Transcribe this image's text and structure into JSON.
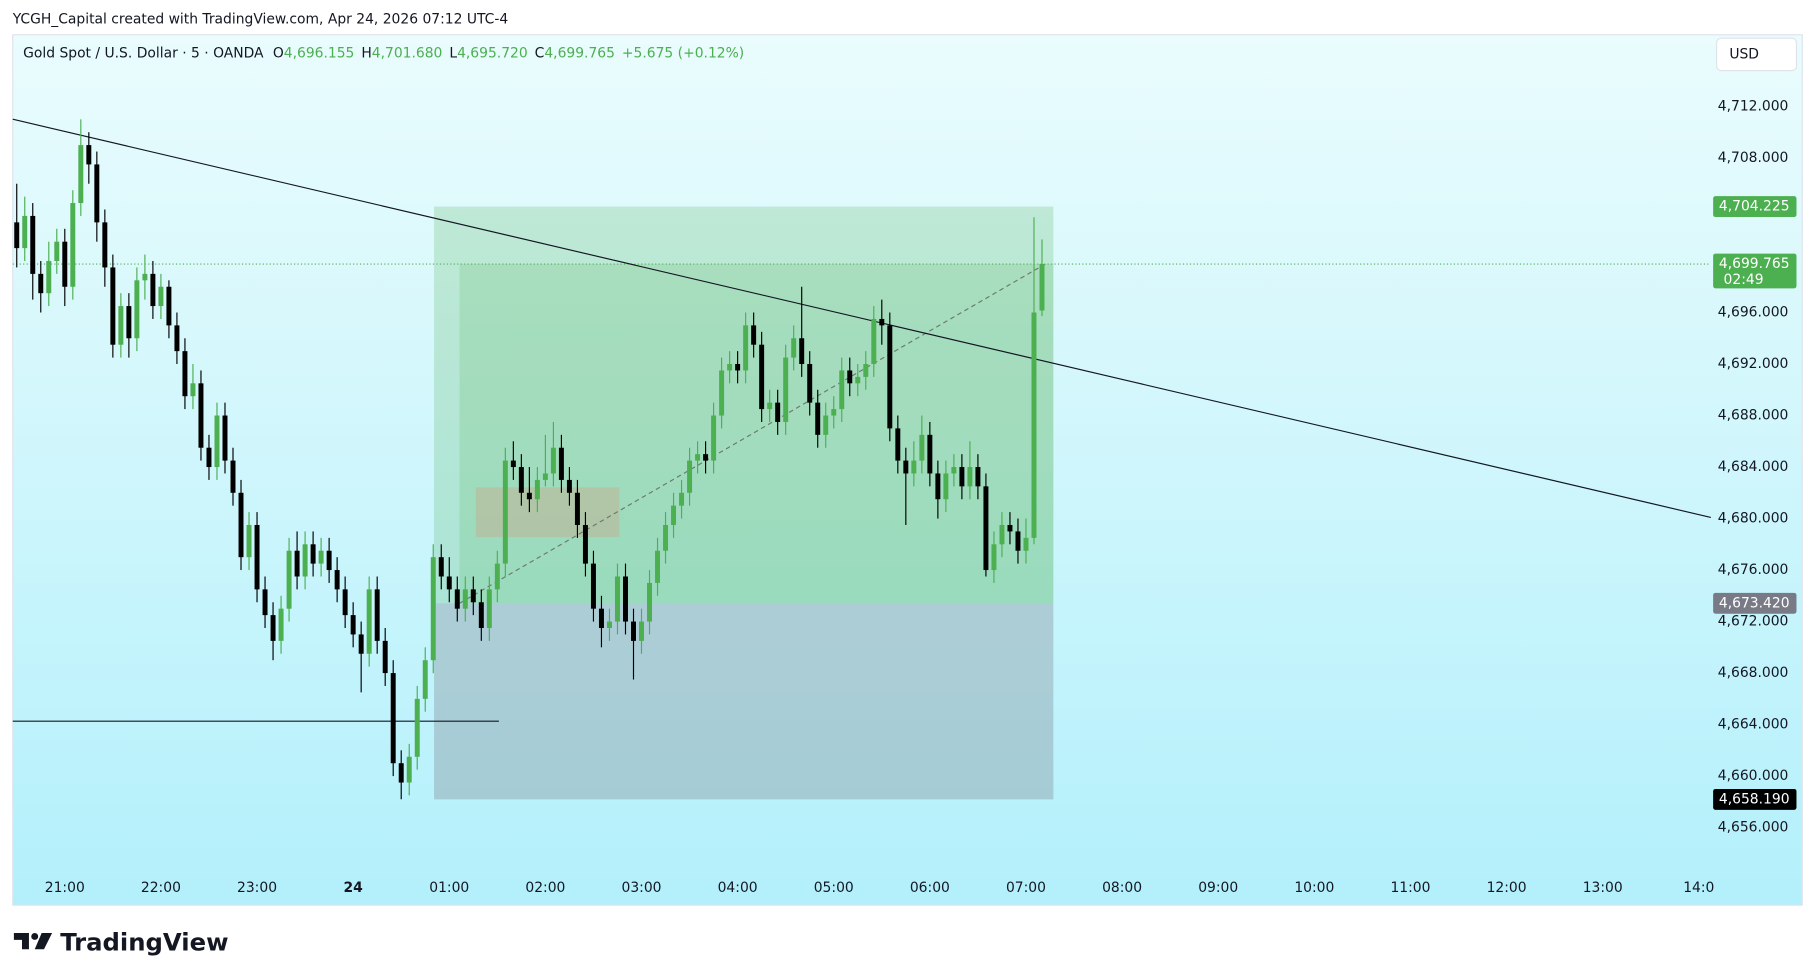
{
  "chart_data": {
    "type": "candlestick",
    "attribution": "YCGH_Capital created with TradingView.com, Apr 24, 2026 07:12 UTC-4",
    "title": "Gold Spot / U.S. Dollar · 5 · OANDA",
    "ohlc_header": [
      {
        "key": "O",
        "value": "4,696.155"
      },
      {
        "key": "H",
        "value": "4,701.680"
      },
      {
        "key": "L",
        "value": "4,695.720"
      },
      {
        "key": "C",
        "value": "4,699.765"
      }
    ],
    "change": "+5.675 (+0.12%)",
    "currency": "USD",
    "logo": "TradingView",
    "up_color": "#4caf50",
    "down_color": "#000000",
    "xlim": [
      -0.5,
      211.5
    ],
    "xticks": [
      {
        "value": 6,
        "label": "21:00"
      },
      {
        "value": 18,
        "label": "22:00"
      },
      {
        "value": 30,
        "label": "23:00"
      },
      {
        "value": 42,
        "label": "24",
        "bold": true
      },
      {
        "value": 54,
        "label": "01:00"
      },
      {
        "value": 66,
        "label": "02:00"
      },
      {
        "value": 78,
        "label": "03:00"
      },
      {
        "value": 90,
        "label": "04:00"
      },
      {
        "value": 102,
        "label": "05:00"
      },
      {
        "value": 114,
        "label": "06:00"
      },
      {
        "value": 126,
        "label": "07:00"
      },
      {
        "value": 138,
        "label": "08:00"
      },
      {
        "value": 150,
        "label": "09:00"
      },
      {
        "value": 162,
        "label": "10:00"
      },
      {
        "value": 174,
        "label": "11:00"
      },
      {
        "value": 186,
        "label": "12:00"
      },
      {
        "value": 198,
        "label": "13:00"
      },
      {
        "value": 210,
        "label": "14:0"
      }
    ],
    "ylim": [
      4652.67,
      4717.57
    ],
    "yticks": [
      {
        "value": 4656,
        "label": "4,656.000"
      },
      {
        "value": 4660,
        "label": "4,660.000"
      },
      {
        "value": 4664,
        "label": "4,664.000"
      },
      {
        "value": 4668,
        "label": "4,668.000"
      },
      {
        "value": 4672,
        "label": "4,672.000"
      },
      {
        "value": 4676,
        "label": "4,676.000"
      },
      {
        "value": 4680,
        "label": "4,680.000"
      },
      {
        "value": 4684,
        "label": "4,684.000"
      },
      {
        "value": 4688,
        "label": "4,688.000"
      },
      {
        "value": 4692,
        "label": "4,692.000"
      },
      {
        "value": 4696,
        "label": "4,696.000"
      },
      {
        "value": 4700,
        "label": "4,700.000"
      },
      {
        "value": 4704,
        "label": "4,704.000"
      },
      {
        "value": 4708,
        "label": "4,708.000"
      },
      {
        "value": 4712,
        "label": "4,712.000"
      }
    ],
    "price_labels": [
      {
        "value": 4704.225,
        "label": "4,704.225",
        "color": "#4caf50"
      },
      {
        "value": 4699.765,
        "label": "4,699.765",
        "sublabel": "02:49",
        "color": "#4caf50"
      },
      {
        "value": 4673.42,
        "label": "4,673.420",
        "color": "#787b86"
      },
      {
        "value": 4658.19,
        "label": "4,658.190",
        "color": "#000000"
      }
    ],
    "candles": [
      [
        4703,
        4706,
        4699.5,
        4701
      ],
      [
        4701,
        4705,
        4700,
        4703.5
      ],
      [
        4703.5,
        4704.5,
        4697,
        4699
      ],
      [
        4699,
        4700,
        4696,
        4697.5
      ],
      [
        4697.5,
        4701.5,
        4696.5,
        4700
      ],
      [
        4700,
        4702.5,
        4699,
        4701.5
      ],
      [
        4701.5,
        4702.5,
        4696.5,
        4698
      ],
      [
        4698,
        4705.5,
        4697,
        4704.5
      ],
      [
        4704.5,
        4711,
        4703.5,
        4709
      ],
      [
        4709,
        4710,
        4706,
        4707.5
      ],
      [
        4707.5,
        4708.5,
        4701.5,
        4703
      ],
      [
        4703,
        4704,
        4698,
        4699.5
      ],
      [
        4699.5,
        4700.5,
        4692.5,
        4693.5
      ],
      [
        4693.5,
        4697.5,
        4692.5,
        4696.5
      ],
      [
        4696.5,
        4697.5,
        4692.5,
        4694
      ],
      [
        4694,
        4699.5,
        4693,
        4698.5
      ],
      [
        4698.5,
        4700.5,
        4697,
        4699
      ],
      [
        4699,
        4700,
        4695.5,
        4696.5
      ],
      [
        4696.5,
        4699,
        4695.5,
        4698
      ],
      [
        4698,
        4698.5,
        4694,
        4695
      ],
      [
        4695,
        4696,
        4692,
        4693
      ],
      [
        4693,
        4694,
        4688.5,
        4689.5
      ],
      [
        4689.5,
        4692,
        4688.5,
        4690.5
      ],
      [
        4690.5,
        4691.5,
        4684.5,
        4685.5
      ],
      [
        4685.5,
        4686.5,
        4683,
        4684
      ],
      [
        4684,
        4689,
        4683,
        4688
      ],
      [
        4688,
        4689,
        4683.5,
        4684.5
      ],
      [
        4684.5,
        4685.5,
        4681,
        4682
      ],
      [
        4682,
        4683,
        4676,
        4677
      ],
      [
        4677,
        4680.5,
        4676,
        4679.5
      ],
      [
        4679.5,
        4680.5,
        4673.5,
        4674.5
      ],
      [
        4674.5,
        4675.5,
        4671.5,
        4672.5
      ],
      [
        4672.5,
        4673.5,
        4669,
        4670.5
      ],
      [
        4670.5,
        4674,
        4669.5,
        4673
      ],
      [
        4673,
        4678.5,
        4672,
        4677.5
      ],
      [
        4677.5,
        4679,
        4674.5,
        4675.5
      ],
      [
        4675.5,
        4679,
        4674.5,
        4678
      ],
      [
        4678,
        4679,
        4675.5,
        4676.5
      ],
      [
        4676.5,
        4678.5,
        4675.5,
        4677.5
      ],
      [
        4677.5,
        4678.5,
        4675,
        4676
      ],
      [
        4676,
        4677,
        4673.5,
        4674.5
      ],
      [
        4674.5,
        4675.5,
        4671.5,
        4672.5
      ],
      [
        4672.5,
        4673.5,
        4670,
        4671
      ],
      [
        4671,
        4672,
        4666.5,
        4669.5
      ],
      [
        4669.5,
        4675.5,
        4668.5,
        4674.5
      ],
      [
        4674.5,
        4675.5,
        4669.5,
        4670.5
      ],
      [
        4670.5,
        4671.5,
        4667,
        4668
      ],
      [
        4668,
        4669,
        4660,
        4661
      ],
      [
        4661,
        4662,
        4658.2,
        4659.5
      ],
      [
        4659.5,
        4662.5,
        4658.5,
        4661.5
      ],
      [
        4661.5,
        4667,
        4660.5,
        4666
      ],
      [
        4666,
        4670,
        4665,
        4669
      ],
      [
        4669,
        4678,
        4668,
        4677
      ],
      [
        4677,
        4678,
        4674.5,
        4675.5
      ],
      [
        4675.5,
        4677,
        4673.5,
        4674.5
      ],
      [
        4674.5,
        4675.5,
        4672,
        4673
      ],
      [
        4673,
        4675.5,
        4672,
        4674.5
      ],
      [
        4674.5,
        4675.5,
        4672.5,
        4673.5
      ],
      [
        4673.5,
        4674.5,
        4670.5,
        4671.5
      ],
      [
        4671.5,
        4675.5,
        4670.5,
        4674.5
      ],
      [
        4674.5,
        4677.5,
        4673.5,
        4676.5
      ],
      [
        4676.5,
        4685.5,
        4675.5,
        4684.5
      ],
      [
        4684.5,
        4686,
        4683,
        4684
      ],
      [
        4684,
        4685,
        4681,
        4682
      ],
      [
        4682,
        4684,
        4680.5,
        4681.5
      ],
      [
        4681.5,
        4684,
        4680.5,
        4683
      ],
      [
        4683,
        4686.5,
        4682.5,
        4683.5
      ],
      [
        4683.5,
        4687.5,
        4682.5,
        4685.5
      ],
      [
        4685.5,
        4686.5,
        4682,
        4683
      ],
      [
        4683,
        4684,
        4681,
        4682
      ],
      [
        4682,
        4683,
        4678.5,
        4679.5
      ],
      [
        4679.5,
        4680.5,
        4675.5,
        4676.5
      ],
      [
        4676.5,
        4677.5,
        4672,
        4673
      ],
      [
        4673,
        4674,
        4670,
        4671.5
      ],
      [
        4671.5,
        4673,
        4670.5,
        4672
      ],
      [
        4672,
        4676.5,
        4671,
        4675.5
      ],
      [
        4675.5,
        4676.5,
        4671,
        4672
      ],
      [
        4672,
        4673,
        4667.5,
        4670.5
      ],
      [
        4670.5,
        4673,
        4669.5,
        4672
      ],
      [
        4672,
        4676,
        4671,
        4675
      ],
      [
        4675,
        4678.5,
        4674,
        4677.5
      ],
      [
        4677.5,
        4680.5,
        4676.5,
        4679.5
      ],
      [
        4679.5,
        4682,
        4678.5,
        4681
      ],
      [
        4681,
        4683,
        4680,
        4682
      ],
      [
        4682,
        4685.5,
        4681,
        4684.5
      ],
      [
        4684.5,
        4686,
        4683.5,
        4685
      ],
      [
        4685,
        4686,
        4683.5,
        4684.5
      ],
      [
        4684.5,
        4689,
        4683.5,
        4688
      ],
      [
        4688,
        4692.5,
        4687,
        4691.5
      ],
      [
        4691.5,
        4693,
        4690.5,
        4692
      ],
      [
        4692,
        4693,
        4690.5,
        4691.5
      ],
      [
        4691.5,
        4696,
        4690.5,
        4695
      ],
      [
        4695,
        4696,
        4692.5,
        4693.5
      ],
      [
        4693.5,
        4694.5,
        4687.5,
        4688.5
      ],
      [
        4688.5,
        4690,
        4687.5,
        4689
      ],
      [
        4689,
        4690,
        4686.5,
        4687.5
      ],
      [
        4687.5,
        4693.5,
        4686.5,
        4692.5
      ],
      [
        4692.5,
        4695,
        4691.5,
        4694
      ],
      [
        4694,
        4698,
        4691,
        4692
      ],
      [
        4692,
        4693,
        4688,
        4689
      ],
      [
        4689,
        4690,
        4685.5,
        4686.5
      ],
      [
        4686.5,
        4689,
        4685.5,
        4688
      ],
      [
        4688,
        4689.5,
        4687,
        4688.5
      ],
      [
        4688.5,
        4692.5,
        4687.5,
        4691.5
      ],
      [
        4691.5,
        4692.5,
        4689.5,
        4690.5
      ],
      [
        4690.5,
        4692,
        4689.5,
        4691
      ],
      [
        4691,
        4693,
        4690,
        4692
      ],
      [
        4692,
        4696.5,
        4691,
        4695.5
      ],
      [
        4695.5,
        4697,
        4693.5,
        4695
      ],
      [
        4695,
        4696,
        4686,
        4687
      ],
      [
        4687,
        4688,
        4683.5,
        4684.5
      ],
      [
        4684.5,
        4685.5,
        4679.5,
        4683.5
      ],
      [
        4683.5,
        4686,
        4682.5,
        4684.5
      ],
      [
        4684.5,
        4688,
        4683.5,
        4686.5
      ],
      [
        4686.5,
        4687.5,
        4682.5,
        4683.5
      ],
      [
        4683.5,
        4684.5,
        4680,
        4681.5
      ],
      [
        4681.5,
        4684.5,
        4680.5,
        4683.5
      ],
      [
        4683.5,
        4685,
        4682.5,
        4684
      ],
      [
        4684,
        4685,
        4681.5,
        4682.5
      ],
      [
        4682.5,
        4686,
        4681.5,
        4684
      ],
      [
        4684,
        4685,
        4681.5,
        4682.5
      ],
      [
        4682.5,
        4683.5,
        4675.5,
        4676
      ],
      [
        4676,
        4679,
        4675,
        4678
      ],
      [
        4678,
        4680.5,
        4677,
        4679.5
      ],
      [
        4679.5,
        4680.5,
        4678,
        4679
      ],
      [
        4679,
        4680,
        4676.5,
        4677.5
      ],
      [
        4677.5,
        4680,
        4676.5,
        4678.5
      ],
      [
        4678.5,
        4703.4,
        4678,
        4696
      ],
      [
        4696.155,
        4701.68,
        4695.72,
        4699.765
      ]
    ]
  }
}
